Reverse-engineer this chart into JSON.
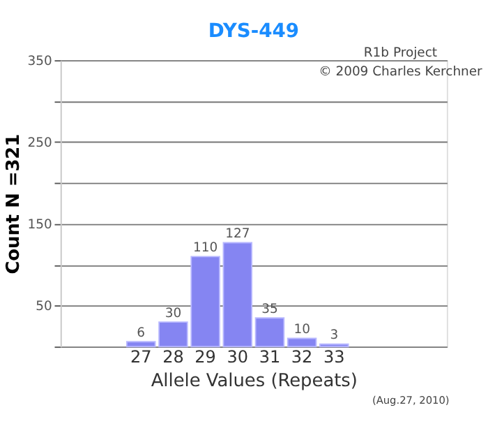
{
  "chart_data": {
    "type": "bar",
    "title": "DYS-449",
    "xlabel": "Allele Values (Repeats)",
    "ylabel": "Count N =321",
    "categories": [
      null,
      null,
      "27",
      "28",
      "29",
      "30",
      "31",
      "32",
      "33",
      null,
      null,
      null
    ],
    "values": [
      null,
      null,
      6,
      30,
      110,
      127,
      35,
      10,
      3,
      null,
      null,
      null
    ],
    "color": "#8585f2",
    "data_labels": true,
    "ylim": [
      0,
      350
    ],
    "yticks": [
      {
        "value": 0,
        "label": null
      },
      50,
      {
        "value": 100,
        "label": null
      },
      150,
      {
        "value": 200,
        "label": null
      },
      250,
      {
        "value": 300,
        "label": null
      },
      350
    ],
    "grid": "y",
    "annotations": [
      "R1b Project",
      "© 2009 Charles Kerchner",
      "(Aug.27, 2010)"
    ]
  }
}
